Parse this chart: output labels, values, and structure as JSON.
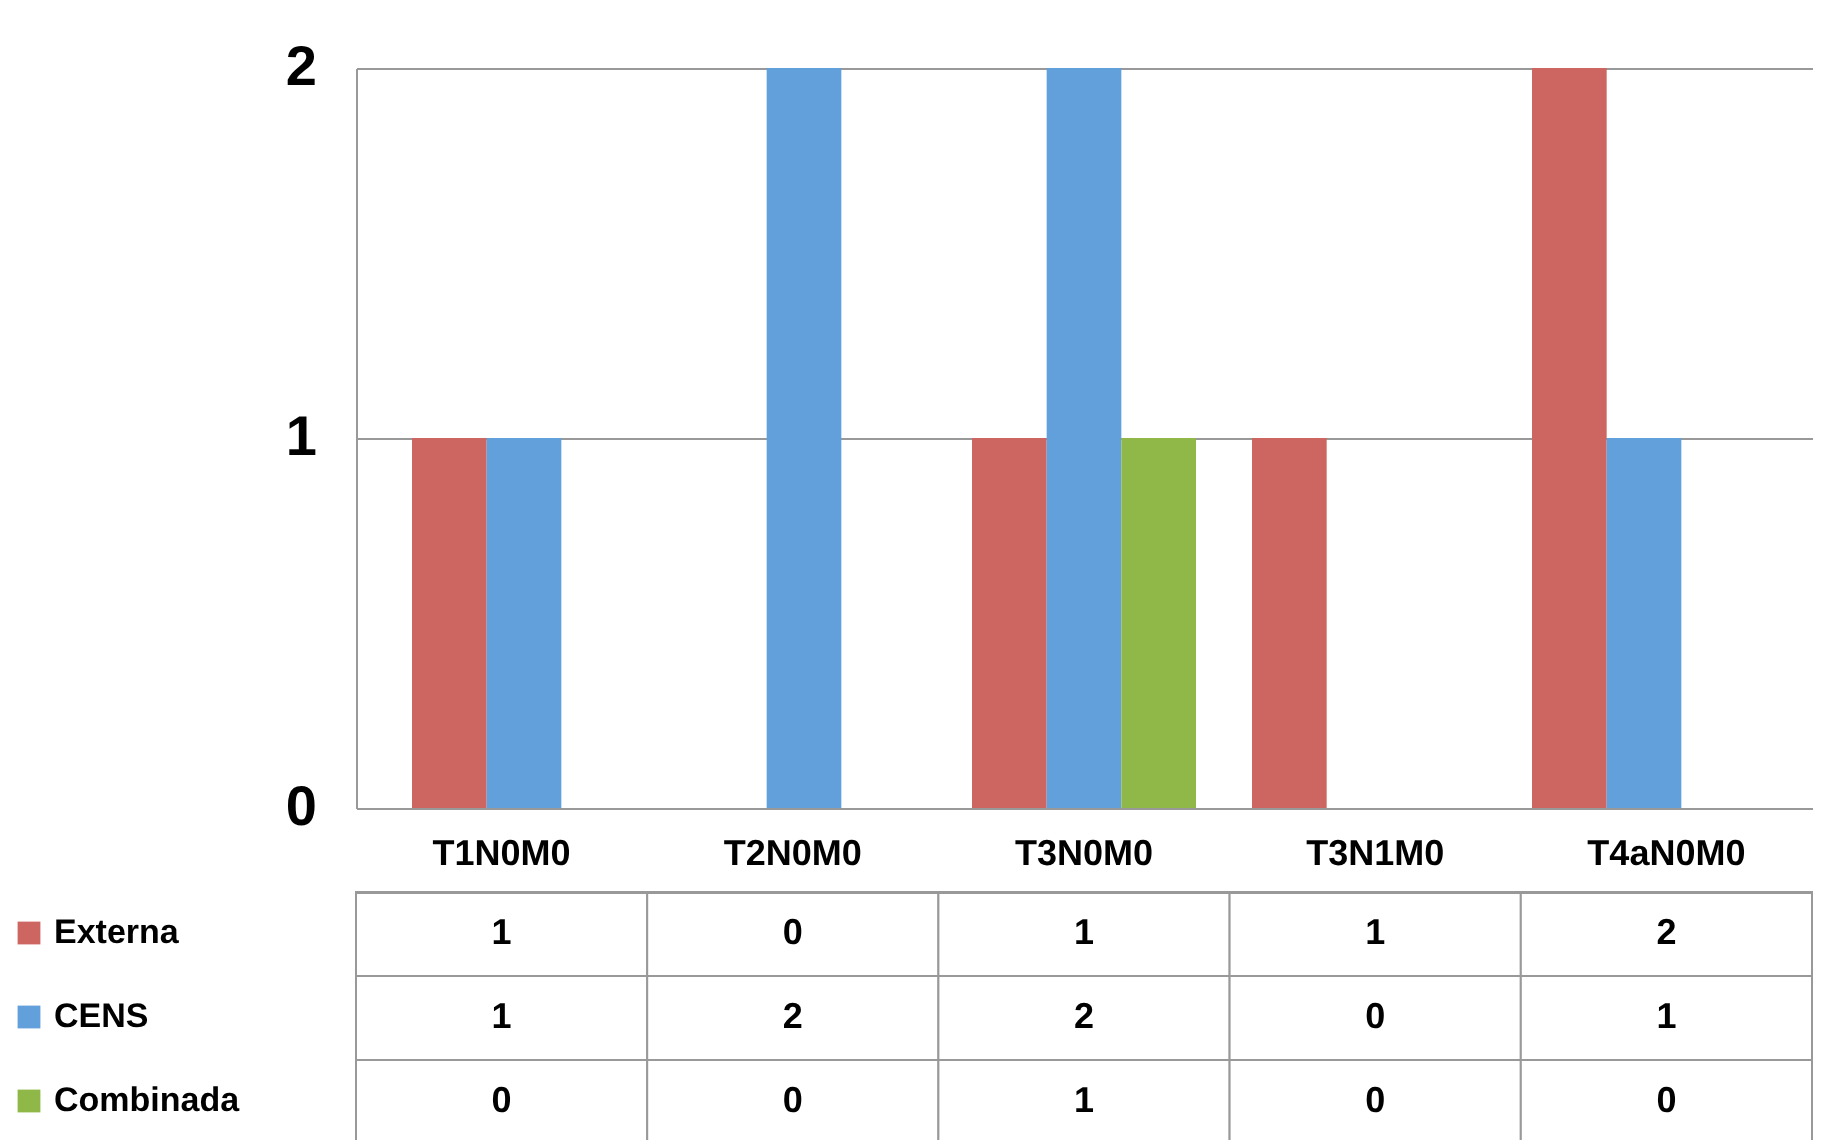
{
  "chart_data": {
    "type": "bar",
    "categories": [
      "T1N0M0",
      "T2N0M0",
      "T3N0M0",
      "T3N1M0",
      "T4aN0M0"
    ],
    "series": [
      {
        "name": "Externa",
        "color": "#cd6660",
        "values": [
          1,
          0,
          1,
          1,
          2
        ]
      },
      {
        "name": "CENS",
        "color": "#62a0dc",
        "values": [
          1,
          2,
          2,
          0,
          1
        ]
      },
      {
        "name": "Combinada",
        "color": "#8fb848",
        "values": [
          0,
          0,
          1,
          0,
          0
        ]
      }
    ],
    "ylim": [
      0,
      2
    ],
    "yticks": [
      0,
      1,
      2
    ],
    "grid": "y",
    "legend": "bottom",
    "data_labels": true
  }
}
